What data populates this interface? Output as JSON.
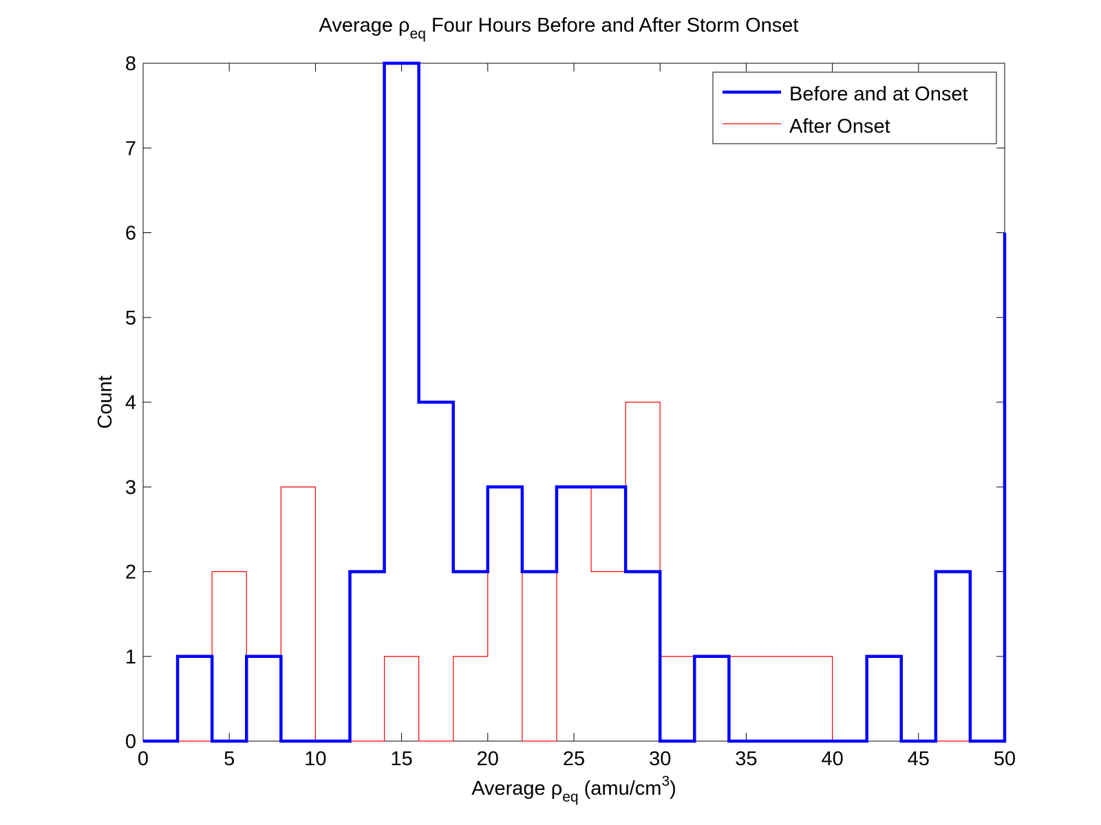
{
  "chart_data": {
    "type": "histogram",
    "title": {
      "pre": "Average ρ",
      "sub": "eq",
      "post": " Four Hours Before and After Storm Onset"
    },
    "xlabel": {
      "pre": "Average ρ",
      "sub": "eq",
      "mid": " (amu/cm",
      "sup": "3",
      "post": ")"
    },
    "ylabel": "Count",
    "xlim": [
      0,
      50
    ],
    "ylim": [
      0,
      8
    ],
    "xticks": [
      0,
      5,
      10,
      15,
      20,
      25,
      30,
      35,
      40,
      45,
      50
    ],
    "yticks": [
      0,
      1,
      2,
      3,
      4,
      5,
      6,
      7,
      8
    ],
    "bin_edges": [
      0,
      2,
      4,
      6,
      8,
      10,
      12,
      14,
      16,
      18,
      20,
      22,
      24,
      26,
      28,
      30,
      32,
      34,
      36,
      38,
      40,
      42,
      44,
      46,
      48,
      50
    ],
    "legend_position": "top-right",
    "series": [
      {
        "name": "Before and at Onset",
        "color": "#0000ff",
        "style": "thick",
        "counts": [
          0,
          1,
          0,
          1,
          0,
          0,
          2,
          8,
          4,
          2,
          3,
          2,
          3,
          3,
          2,
          0,
          1,
          0,
          0,
          0,
          0,
          1,
          0,
          2,
          0
        ],
        "final_edge_value": 6
      },
      {
        "name": "After Onset",
        "color": "#ff0000",
        "style": "thin",
        "counts": [
          0,
          0,
          2,
          1,
          3,
          0,
          0,
          1,
          0,
          1,
          3,
          0,
          3,
          2,
          4,
          1,
          1,
          1,
          1,
          1,
          0,
          1,
          0,
          0,
          0
        ]
      }
    ]
  }
}
